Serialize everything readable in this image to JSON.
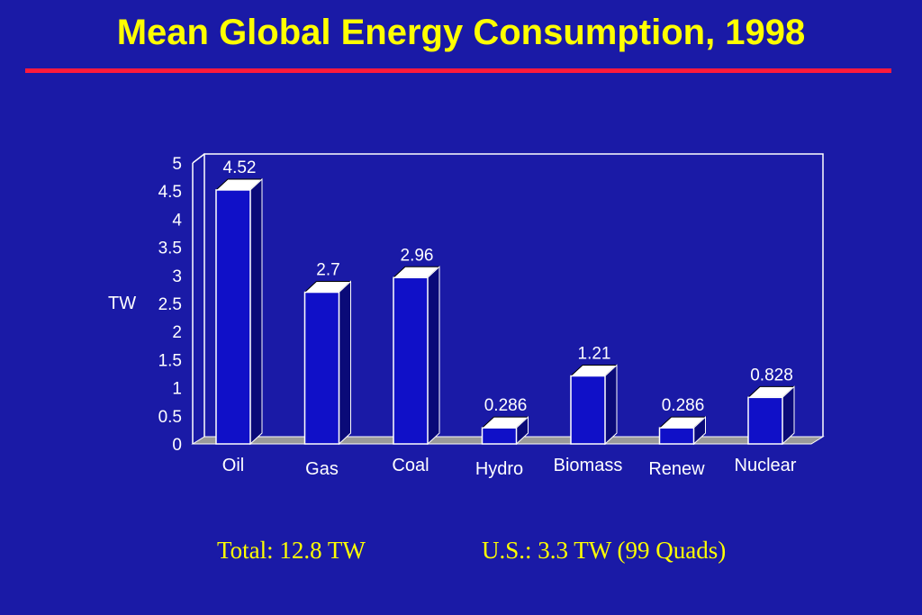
{
  "slide": {
    "title": "Mean Global Energy Consumption, 1998",
    "footer_total": "Total: 12.8 TW",
    "footer_us": "U.S.: 3.3 TW (99 Quads)"
  },
  "colors": {
    "background": "#1a1aa6",
    "title": "#ffff00",
    "rule": "#ff1a3c",
    "bar_front": "#1010c8",
    "bar_side": "#0a0a78",
    "bar_top": "#ffffff",
    "floor": "#9a9a9a",
    "text": "#ffffff"
  },
  "chart_data": {
    "type": "bar",
    "categories": [
      "Oil",
      "Gas",
      "Coal",
      "Hydro",
      "Biomass",
      "Renew",
      "Nuclear"
    ],
    "values": [
      4.52,
      2.7,
      2.96,
      0.286,
      1.21,
      0.286,
      0.828
    ],
    "data_labels": [
      "4.52",
      "2.7",
      "2.96",
      "0.286",
      "1.21",
      "0.286",
      "0.828"
    ],
    "title": "",
    "xlabel": "",
    "ylabel": "TW",
    "ylim": [
      0,
      5
    ],
    "yticks": [
      "0",
      "0.5",
      "1",
      "1.5",
      "2",
      "2.5",
      "3",
      "3.5",
      "4",
      "4.5",
      "5"
    ],
    "grid": false,
    "style": "3d-bar"
  }
}
